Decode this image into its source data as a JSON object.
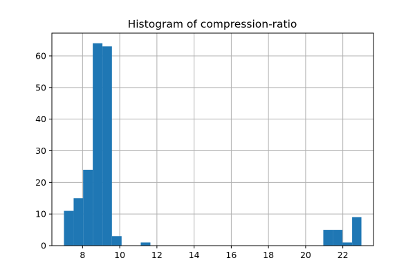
{
  "chart_data": {
    "type": "bar",
    "title": "Histogram of compression-ratio",
    "xlabel": "",
    "ylabel": "",
    "xlim": [
      6.35,
      23.65
    ],
    "ylim": [
      0,
      67.2
    ],
    "grid": true,
    "bar_color": "#1f77b4",
    "grid_color": "#b0b0b0",
    "x_ticks": [
      8,
      10,
      12,
      14,
      16,
      18,
      20,
      22
    ],
    "y_ticks": [
      0,
      10,
      20,
      30,
      40,
      50,
      60
    ],
    "bins": [
      {
        "x0": 7.0,
        "x1": 7.52,
        "value": 11
      },
      {
        "x0": 7.52,
        "x1": 8.03,
        "value": 15
      },
      {
        "x0": 8.03,
        "x1": 8.55,
        "value": 24
      },
      {
        "x0": 8.55,
        "x1": 9.07,
        "value": 64
      },
      {
        "x0": 9.07,
        "x1": 9.58,
        "value": 63
      },
      {
        "x0": 9.58,
        "x1": 10.1,
        "value": 3
      },
      {
        "x0": 10.1,
        "x1": 10.62,
        "value": 0
      },
      {
        "x0": 10.62,
        "x1": 11.13,
        "value": 0
      },
      {
        "x0": 11.13,
        "x1": 11.65,
        "value": 1
      },
      {
        "x0": 11.65,
        "x1": 12.17,
        "value": 0
      },
      {
        "x0": 20.95,
        "x1": 21.47,
        "value": 5
      },
      {
        "x0": 21.47,
        "x1": 21.98,
        "value": 5
      },
      {
        "x0": 21.98,
        "x1": 22.5,
        "value": 1
      },
      {
        "x0": 22.5,
        "x1": 23.0,
        "value": 9
      }
    ]
  }
}
